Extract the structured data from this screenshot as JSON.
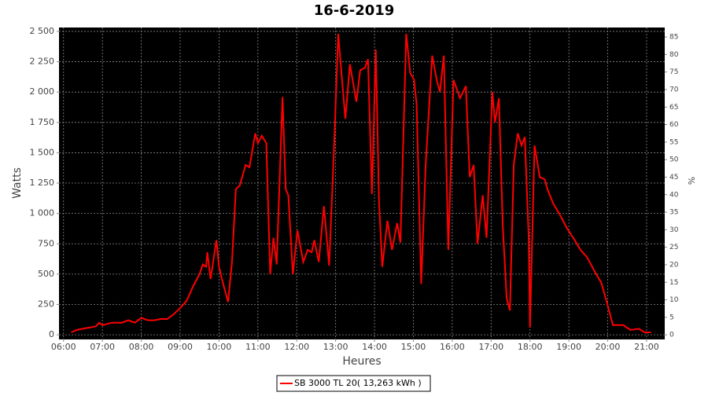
{
  "chart_data": {
    "type": "line",
    "title": "16-6-2019",
    "x_label": "Heures",
    "y_label": "Watts",
    "y2_label": "%",
    "x": [
      "06:12",
      "06:20",
      "06:30",
      "06:40",
      "06:50",
      "06:55",
      "07:00",
      "07:15",
      "07:30",
      "07:40",
      "07:50",
      "08:00",
      "08:10",
      "08:20",
      "08:30",
      "08:40",
      "08:50",
      "09:00",
      "09:10",
      "09:20",
      "09:30",
      "09:35",
      "09:40",
      "09:42",
      "09:47",
      "09:56",
      "10:00",
      "10:05",
      "10:14",
      "10:20",
      "10:26",
      "10:32",
      "10:41",
      "10:47",
      "10:56",
      "11:00",
      "11:06",
      "11:13",
      "11:19",
      "11:24",
      "11:29",
      "11:38",
      "11:43",
      "11:47",
      "11:54",
      "12:01",
      "12:10",
      "12:17",
      "12:23",
      "12:27",
      "12:34",
      "12:42",
      "12:50",
      "12:58",
      "13:04",
      "13:15",
      "13:22",
      "13:32",
      "13:38",
      "13:45",
      "13:50",
      "13:56",
      "14:02",
      "14:07",
      "14:12",
      "14:20",
      "14:27",
      "14:35",
      "14:40",
      "14:49",
      "14:55",
      "15:01",
      "15:05",
      "15:12",
      "15:19",
      "15:29",
      "15:36",
      "15:41",
      "15:47",
      "15:54",
      "16:02",
      "16:12",
      "16:21",
      "16:27",
      "16:33",
      "16:39",
      "16:47",
      "16:53",
      "17:02",
      "17:06",
      "17:12",
      "17:18",
      "17:24",
      "17:29",
      "17:35",
      "17:41",
      "17:47",
      "17:52",
      "17:58",
      "18:00",
      "18:07",
      "18:15",
      "18:23",
      "18:27",
      "18:36",
      "18:45",
      "18:57",
      "19:09",
      "19:18",
      "19:28",
      "19:40",
      "19:50",
      "19:58",
      "20:08",
      "20:24",
      "20:35",
      "20:48",
      "20:57",
      "21:07"
    ],
    "series": [
      {
        "name": "SB 3000 TL 20( 13,263 kWh )",
        "color": "#ff0000",
        "values": [
          20,
          40,
          50,
          60,
          70,
          100,
          80,
          100,
          100,
          120,
          100,
          140,
          120,
          120,
          130,
          130,
          170,
          220,
          280,
          400,
          500,
          580,
          560,
          680,
          460,
          780,
          560,
          450,
          270,
          600,
          1200,
          1230,
          1400,
          1380,
          1660,
          1580,
          1640,
          1580,
          500,
          800,
          580,
          1960,
          1200,
          1150,
          500,
          860,
          600,
          700,
          680,
          780,
          600,
          1060,
          570,
          1600,
          2480,
          1780,
          2230,
          1920,
          2180,
          2200,
          2270,
          1160,
          2350,
          1100,
          560,
          940,
          700,
          920,
          760,
          2480,
          2160,
          2100,
          1900,
          420,
          1400,
          2300,
          2100,
          2000,
          2300,
          700,
          2100,
          1950,
          2050,
          1300,
          1400,
          750,
          1150,
          800,
          2000,
          1750,
          1950,
          900,
          300,
          200,
          1400,
          1660,
          1560,
          1630,
          800,
          60,
          1560,
          1300,
          1280,
          1200,
          1080,
          1000,
          880,
          780,
          700,
          640,
          520,
          430,
          280,
          80,
          80,
          40,
          50,
          20,
          20
        ]
      }
    ],
    "xlim": [
      "05:53",
      "21:28"
    ],
    "xticks": [
      "06:00",
      "07:00",
      "08:00",
      "09:00",
      "10:00",
      "11:00",
      "12:00",
      "13:00",
      "14:00",
      "15:00",
      "16:00",
      "17:00",
      "18:00",
      "19:00",
      "20:00",
      "21:00"
    ],
    "ylim": [
      -38,
      2532
    ],
    "yticks": [
      0,
      250,
      500,
      750,
      {
        "value": 1000,
        "label": "1 000"
      },
      {
        "value": 1250,
        "label": "1 250"
      },
      {
        "value": 1500,
        "label": "1 500"
      },
      {
        "value": 1750,
        "label": "1 750"
      },
      {
        "value": 2000,
        "label": "2 000"
      },
      {
        "value": 2250,
        "label": "2 250"
      },
      {
        "value": 2500,
        "label": "2 500"
      }
    ],
    "y2lim": [
      -1.3,
      87.7
    ],
    "y2ticks": [
      0,
      5,
      10,
      15,
      20,
      25,
      30,
      35,
      40,
      45,
      50,
      55,
      60,
      65,
      70,
      75,
      80,
      85
    ],
    "grid": true,
    "legend": "bottom"
  }
}
